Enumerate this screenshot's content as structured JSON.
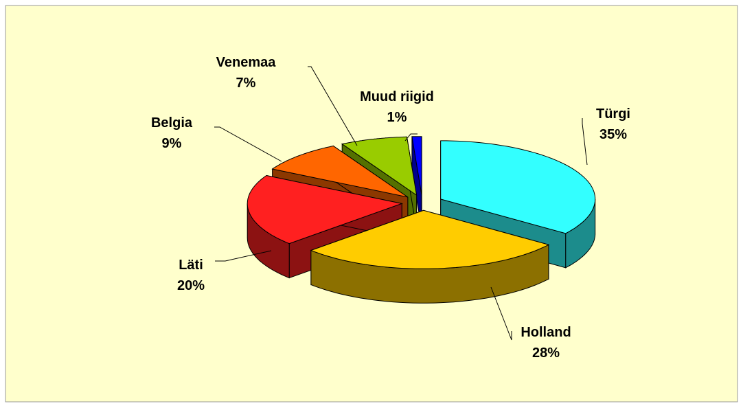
{
  "chart_data": {
    "type": "pie3d",
    "categories": [
      "Türgi",
      "Holland",
      "Läti",
      "Belgia",
      "Venemaa",
      "Muud riigid"
    ],
    "values": [
      35,
      28,
      20,
      9,
      7,
      1
    ],
    "value_labels": [
      "35%",
      "28%",
      "20%",
      "9%",
      "7%",
      "1%"
    ],
    "colors": [
      "#33ffff",
      "#ffcc00",
      "#ff2020",
      "#ff6600",
      "#99cc00",
      "#0000ff"
    ]
  }
}
